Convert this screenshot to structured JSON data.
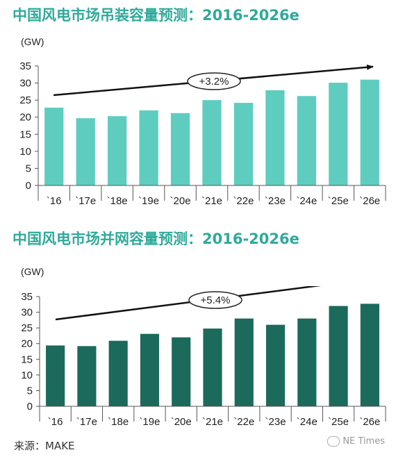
{
  "top_chart": {
    "title": "中国风电市场吊装容量预测：2016-2026e",
    "title_color": "#2eaa99",
    "unit": "(GW)",
    "cagr_label": "+3.2%"
  },
  "bottom_chart": {
    "title": "中国风电市场并网容量预测：2016-2026e",
    "title_color": "#2eaa99",
    "unit": "(GW)",
    "cagr_label": "+5.4%"
  },
  "source": "来源：MAKE",
  "watermark": "NE Times",
  "chart_data": [
    {
      "type": "bar",
      "title": "中国风电市场吊装容量预测：2016-2026e",
      "ylabel": "(GW)",
      "categories": [
        "`16",
        "`17e",
        "`18e",
        "`19e",
        "`20e",
        "`21e",
        "`22e",
        "`23e",
        "`24e",
        "`25e",
        "`26e"
      ],
      "values": [
        22.8,
        19.7,
        20.3,
        22.0,
        21.2,
        25.0,
        24.2,
        27.9,
        26.2,
        30.1,
        31.0
      ],
      "ylim": [
        0,
        35
      ],
      "yticks": [
        0,
        5,
        10,
        15,
        20,
        25,
        30,
        35
      ],
      "annotation": "+3.2%",
      "bar_color": "#5ecdc0",
      "grid": false
    },
    {
      "type": "bar",
      "title": "中国风电市场并网容量预测：2016-2026e",
      "ylabel": "(GW)",
      "categories": [
        "`16",
        "`17e",
        "`18e",
        "`19e",
        "`20e",
        "`21e",
        "`22e",
        "`23e",
        "`24e",
        "`25e",
        "`26e"
      ],
      "values": [
        19.4,
        19.2,
        20.9,
        23.1,
        22.0,
        24.8,
        28.0,
        26.0,
        28.0,
        32.0,
        32.7
      ],
      "ylim": [
        0,
        35
      ],
      "yticks": [
        0,
        5,
        10,
        15,
        20,
        25,
        30,
        35
      ],
      "annotation": "+5.4%",
      "bar_color": "#1c6a5b",
      "grid": false
    }
  ]
}
